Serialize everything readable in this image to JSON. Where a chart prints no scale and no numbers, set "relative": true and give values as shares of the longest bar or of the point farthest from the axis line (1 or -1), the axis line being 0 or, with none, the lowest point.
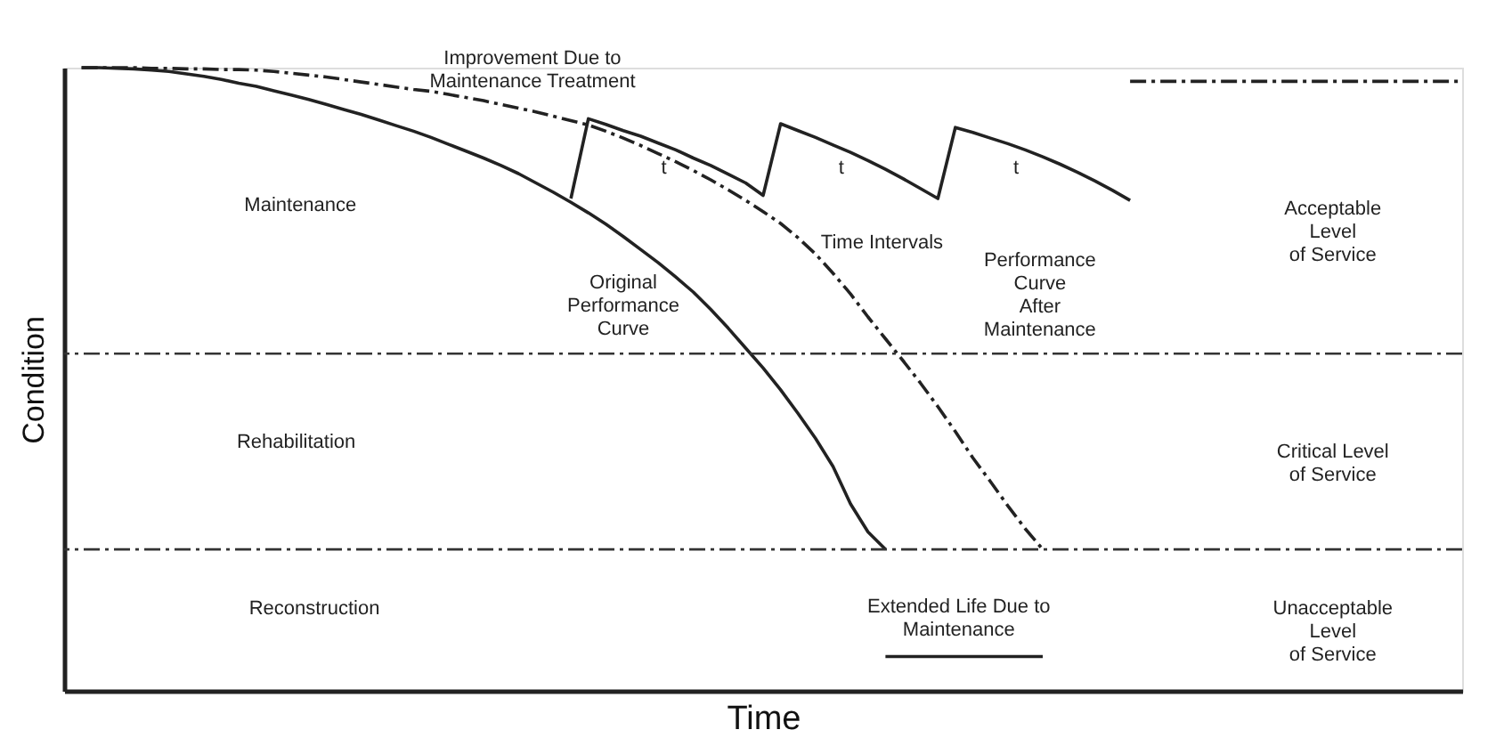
{
  "chart_data": {
    "type": "line",
    "relative": true,
    "xlabel": "Time",
    "ylabel": "Condition",
    "tick_labels": false,
    "grid": false,
    "categories": [
      null,
      null,
      null,
      null,
      null,
      null,
      null,
      null,
      null,
      null,
      null,
      null,
      null,
      null,
      null,
      null,
      null,
      null,
      null,
      null,
      null,
      null,
      null,
      null,
      null,
      null,
      null,
      null,
      null,
      null,
      null,
      null,
      null,
      null,
      null,
      null,
      null,
      null,
      null,
      null,
      null,
      null,
      null,
      null,
      null,
      null,
      null,
      null,
      null,
      null,
      null,
      null,
      null,
      null,
      null,
      null,
      null,
      null,
      null,
      null,
      null,
      null,
      null,
      null,
      null,
      null,
      null,
      null,
      null,
      null,
      null,
      null,
      null,
      null,
      null,
      null,
      null,
      null,
      null,
      null,
      null
    ],
    "series": [
      {
        "color": "#222222",
        "line_style": "solid",
        "values": [
          null,
          1.0,
          1.0,
          0.999,
          0.998,
          0.996,
          0.994,
          0.99,
          0.986,
          0.981,
          0.975,
          0.97,
          0.963,
          0.956,
          0.949,
          0.941,
          0.933,
          0.925,
          0.916,
          0.907,
          0.898,
          0.888,
          0.877,
          0.866,
          0.855,
          0.843,
          0.83,
          0.815,
          0.8,
          0.784,
          0.767,
          0.749,
          0.729,
          0.708,
          0.687,
          0.664,
          0.64,
          0.612,
          0.582,
          0.55,
          0.518,
          0.483,
          0.445,
          0.405,
          0.36,
          0.3,
          0.255,
          0.227,
          null,
          null,
          null,
          null,
          null,
          null,
          null,
          null,
          null,
          null,
          null,
          null,
          null,
          null,
          null,
          null,
          null,
          null,
          null,
          null,
          null,
          null,
          null,
          null,
          null,
          null,
          null,
          null,
          null,
          null,
          null,
          null,
          null
        ]
      },
      {
        "color": "#222222",
        "line_style": "dashed",
        "values": [
          null,
          1.0,
          1.0,
          1.0,
          1.0,
          0.999,
          0.999,
          0.998,
          0.998,
          0.997,
          0.997,
          0.996,
          0.994,
          0.991,
          0.988,
          0.985,
          0.981,
          0.977,
          0.973,
          0.969,
          0.965,
          0.962,
          0.957,
          0.952,
          0.947,
          0.941,
          0.935,
          0.929,
          0.922,
          0.915,
          0.908,
          0.898,
          0.887,
          0.875,
          0.862,
          0.849,
          0.835,
          0.82,
          0.804,
          0.787,
          0.769,
          0.75,
          0.727,
          0.701,
          0.67,
          0.637,
          0.6,
          0.565,
          0.53,
          0.494,
          0.456,
          0.416,
          0.374,
          0.336,
          0.297,
          0.26,
          0.227,
          null,
          null,
          null,
          null,
          null,
          null,
          null,
          null,
          null,
          null,
          null,
          null,
          null,
          null,
          null,
          null,
          null,
          null,
          null,
          null,
          null,
          null,
          null,
          null
        ]
      },
      {
        "color": "#222222",
        "line_style": "solid",
        "values": [
          null,
          null,
          null,
          null,
          null,
          null,
          null,
          null,
          null,
          null,
          null,
          null,
          null,
          null,
          null,
          null,
          null,
          null,
          null,
          null,
          null,
          null,
          null,
          null,
          null,
          null,
          null,
          null,
          null,
          0.79,
          0.918,
          0.909,
          0.899,
          0.89,
          0.879,
          0.868,
          0.855,
          0.843,
          0.829,
          0.815,
          0.795,
          0.91,
          0.899,
          0.888,
          0.876,
          0.864,
          0.851,
          0.837,
          0.822,
          0.806,
          0.79,
          0.904,
          0.896,
          0.887,
          0.878,
          0.868,
          0.857,
          0.845,
          0.832,
          0.818,
          0.803,
          0.787,
          null,
          null,
          null,
          null,
          null,
          null,
          null,
          null,
          null,
          null,
          null,
          null,
          null,
          null,
          null,
          null,
          null,
          null,
          null
        ]
      },
      {
        "color": "#222222",
        "line_style": "dashed",
        "values": [
          null,
          null,
          null,
          null,
          null,
          null,
          null,
          null,
          null,
          null,
          null,
          null,
          null,
          null,
          null,
          null,
          null,
          null,
          null,
          null,
          null,
          null,
          null,
          null,
          null,
          null,
          null,
          null,
          null,
          null,
          null,
          null,
          null,
          null,
          null,
          null,
          null,
          null,
          null,
          null,
          null,
          null,
          null,
          null,
          null,
          null,
          null,
          null,
          null,
          null,
          null,
          null,
          null,
          null,
          null,
          null,
          null,
          null,
          null,
          null,
          null,
          0.978,
          0.978,
          0.978,
          0.978,
          0.978,
          0.978,
          0.978,
          0.978,
          0.978,
          0.978,
          0.978,
          0.978,
          0.978,
          0.978,
          0.978,
          0.978,
          0.978,
          0.978,
          0.978,
          0.978
        ]
      },
      {
        "color": "#222222",
        "line_style": "solid",
        "values": [
          null,
          null,
          null,
          null,
          null,
          null,
          null,
          null,
          null,
          null,
          null,
          null,
          null,
          null,
          null,
          null,
          null,
          null,
          null,
          null,
          null,
          null,
          null,
          null,
          null,
          null,
          null,
          null,
          null,
          null,
          null,
          null,
          null,
          null,
          null,
          null,
          null,
          null,
          null,
          null,
          null,
          null,
          null,
          null,
          null,
          null,
          null,
          0.055,
          0.055,
          0.055,
          0.055,
          0.055,
          0.055,
          0.055,
          0.055,
          0.055,
          0.055,
          null,
          null,
          null,
          null,
          null,
          null,
          null,
          null,
          null,
          null,
          null,
          null,
          null,
          null,
          null,
          null,
          null,
          null,
          null,
          null,
          null,
          null,
          null,
          null
        ]
      }
    ],
    "ref_lines": [
      {
        "axis": "y",
        "value": 0.541,
        "line_style": "dashed",
        "color": "#333333"
      },
      {
        "axis": "y",
        "value": 0.227,
        "line_style": "dashed",
        "color": "#333333"
      }
    ],
    "annotations": [
      "Improvement Due to\nMaintenance Treatment",
      "Maintenance",
      "Original\nPerformance\nCurve",
      "Performance\nCurve\nAfter\nMaintenance",
      "Time Intervals",
      "t",
      "t",
      "t",
      "Rehabilitation",
      "Reconstruction",
      "Extended Life Due to\nMaintenance",
      "Acceptable\nLevel\nof Service",
      "Critical Level\nof Service",
      "Unacceptable\nLevel\nof Service"
    ]
  }
}
